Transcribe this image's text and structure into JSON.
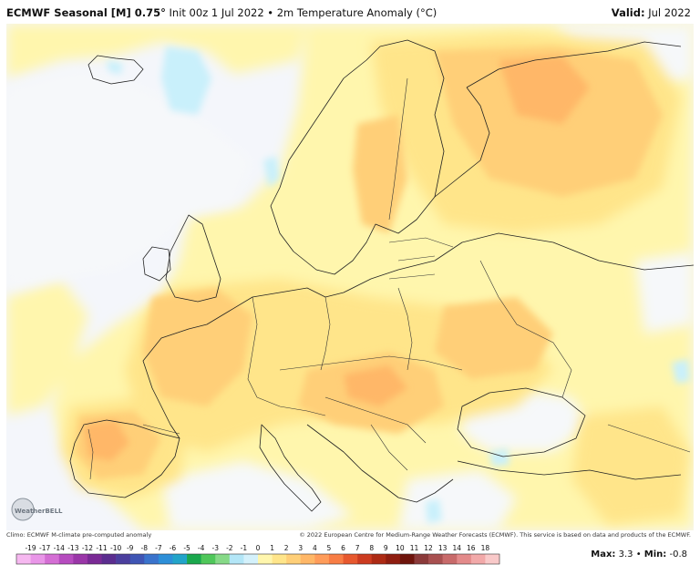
{
  "header": {
    "model": "ECMWF Seasonal [M] 0.75",
    "degree_symbol": "°",
    "run_info": " Init 00z 1 Jul 2022 • 2m Temperature Anomaly (°C)",
    "valid_label": "Valid:",
    "valid_value": " Jul 2022"
  },
  "footer": {
    "climo": "Climo: ECMWF M-climate pre-computed anomaly",
    "copyright": "© 2022 European Centre for Medium-Range Weather Forecasts (ECMWF). This service is based on data and products of the ECMWF."
  },
  "colorbar": {
    "ticks": [
      "-19",
      "-17",
      "-14",
      "-13",
      "-12",
      "-11",
      "-10",
      "-9",
      "-8",
      "-7",
      "-6",
      "-5",
      "-4",
      "-3",
      "-2",
      "-1",
      "0",
      "1",
      "2",
      "3",
      "4",
      "5",
      "6",
      "7",
      "8",
      "9",
      "10",
      "11",
      "12",
      "13",
      "14",
      "16",
      "18"
    ],
    "colors": [
      "#f6b8f0",
      "#e996e8",
      "#d46ed4",
      "#b64cbf",
      "#9a36a8",
      "#7a2a95",
      "#5b2d8f",
      "#4b3f9e",
      "#3f55b4",
      "#3a73cc",
      "#2d8fd8",
      "#22a4c9",
      "#1aa84d",
      "#4fc75a",
      "#86d987",
      "#b3e6f7",
      "#d4f1fb",
      "#fff6ad",
      "#ffe58a",
      "#ffcf78",
      "#ffb767",
      "#ff9c5a",
      "#f87d45",
      "#e7582e",
      "#cc3b20",
      "#ad2a14",
      "#8f1d10",
      "#6e140c",
      "#8b3a3a",
      "#a85050",
      "#c86a6a",
      "#e38a8a",
      "#f2a9a9",
      "#f9c9c9"
    ]
  },
  "stats": {
    "max_label": "Max:",
    "max_value": "3.3",
    "separator": " • ",
    "min_label": "Min:",
    "min_value": "-0.8"
  },
  "logo": {
    "text": "WeatherBELL"
  },
  "map": {
    "ocean_color": "#f4f6fb",
    "anomaly_colors": {
      "neg": "#c9f0fb",
      "zero": "#f6f8fa",
      "a1": "#fff6ad",
      "a2": "#ffe58a",
      "a3": "#ffcf78",
      "a4": "#ffb767"
    }
  }
}
